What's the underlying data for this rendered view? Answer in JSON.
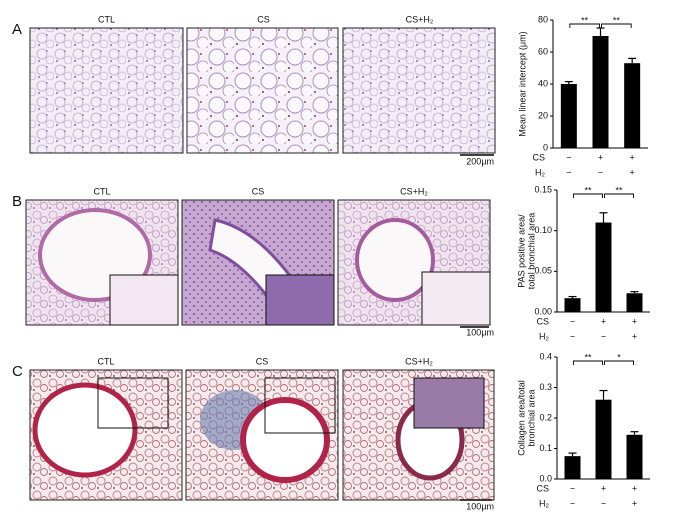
{
  "panels": [
    {
      "label": "A",
      "image_titles": [
        "CTL",
        "CS",
        "CS+H₂"
      ],
      "scale_bar": "200µm"
    },
    {
      "label": "B",
      "image_titles": [
        "CTL",
        "CS",
        "CS+H₂"
      ],
      "scale_bar": "100µm"
    },
    {
      "label": "C",
      "image_titles": [
        "CTL",
        "CS",
        "CS+H₂"
      ],
      "scale_bar": "100µm"
    }
  ],
  "chart_data": [
    {
      "type": "bar",
      "ylabel": [
        "Mean linear intercept (μm)"
      ],
      "values": [
        40,
        70,
        53
      ],
      "errors": [
        1.5,
        5,
        3
      ],
      "color": "#000000",
      "ylim": [
        0,
        80
      ],
      "yticks": [
        0,
        20,
        40,
        60,
        80
      ],
      "significance_labels": [
        "**",
        "**"
      ],
      "conditions": [
        {
          "name": "CS",
          "values": [
            "−",
            "+",
            "+"
          ]
        },
        {
          "name": "H₂",
          "values": [
            "−",
            "−",
            "+"
          ]
        }
      ]
    },
    {
      "type": "bar",
      "ylabel": [
        "PAS positive area/",
        "total bronchial area"
      ],
      "values": [
        0.017,
        0.11,
        0.023
      ],
      "errors": [
        0.002,
        0.012,
        0.002
      ],
      "color": "#000000",
      "ylim": [
        0,
        0.15
      ],
      "yticks": [
        {
          "value": 0,
          "label": "0.00"
        },
        {
          "value": 0.05,
          "label": "0.05"
        },
        {
          "value": 0.1,
          "label": "0.10"
        },
        {
          "value": 0.15,
          "label": "0.15"
        }
      ],
      "significance_labels": [
        "**",
        "**"
      ],
      "conditions": [
        {
          "name": "CS",
          "values": [
            "−",
            "+",
            "+"
          ]
        },
        {
          "name": "H₂",
          "values": [
            "−",
            "−",
            "+"
          ]
        }
      ]
    },
    {
      "type": "bar",
      "ylabel": [
        "Collagen area/total",
        "bronchial area"
      ],
      "values": [
        0.075,
        0.26,
        0.145
      ],
      "errors": [
        0.01,
        0.03,
        0.01
      ],
      "color": "#000000",
      "ylim": [
        0,
        0.4
      ],
      "yticks": [
        {
          "value": 0,
          "label": "0.0"
        },
        0.1,
        0.2,
        0.3,
        0.4
      ],
      "significance_labels": [
        "**",
        "*"
      ],
      "conditions": [
        {
          "name": "CS",
          "values": [
            "−",
            "+",
            "+"
          ]
        },
        {
          "name": "H₂",
          "values": [
            "−",
            "−",
            "+"
          ]
        }
      ]
    }
  ]
}
